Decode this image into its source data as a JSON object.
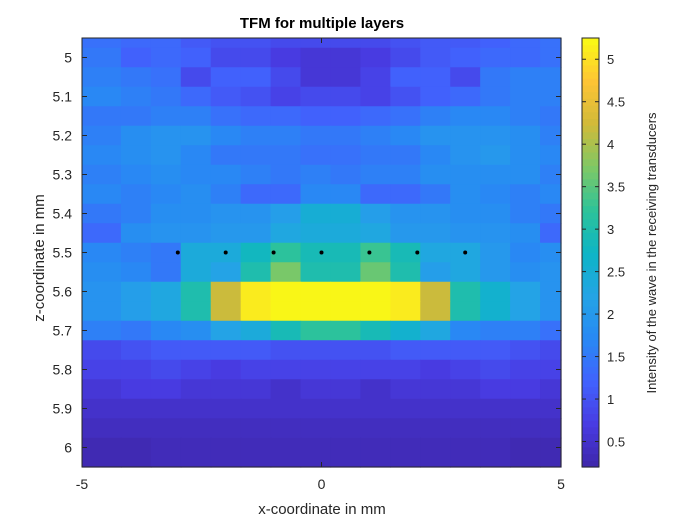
{
  "chart_data": {
    "type": "heatmap",
    "title": "TFM for multiple layers",
    "xlabel": "x-coordinate in mm",
    "ylabel": "z-coordinate in mm",
    "colorbar_label": "Intensity of the wave in the receiving transducers",
    "xlim": [
      -5,
      5
    ],
    "ylim": [
      4.95,
      6.05
    ],
    "y_direction": "reversed",
    "colormap": "parula",
    "clim": [
      0.2,
      5.25
    ],
    "x_ticks": [
      "-5",
      "0",
      "5"
    ],
    "y_ticks": [
      "5",
      "5.1",
      "5.2",
      "5.3",
      "5.4",
      "5.5",
      "5.6",
      "5.7",
      "5.8",
      "5.9",
      "6"
    ],
    "colorbar_ticks": [
      "0.5",
      "1",
      "1.5",
      "2",
      "2.5",
      "3",
      "3.5",
      "4",
      "4.5",
      "5"
    ],
    "x": [
      -4.5,
      -3.875,
      -3.25,
      -2.625,
      -2.0,
      -1.375,
      -0.75,
      -0.125,
      0.5,
      1.125,
      1.75,
      2.375,
      3.0,
      3.625,
      4.25,
      4.875
    ],
    "z": [
      4.95,
      5.0,
      5.05,
      5.1,
      5.15,
      5.2,
      5.25,
      5.3,
      5.35,
      5.4,
      5.45,
      5.5,
      5.55,
      5.6,
      5.65,
      5.7,
      5.75,
      5.8,
      5.85,
      5.9,
      5.95,
      6.0
    ],
    "values": [
      [
        1.4,
        1.3,
        1.3,
        1.1,
        1.0,
        1.0,
        0.9,
        0.9,
        0.9,
        0.9,
        1.0,
        1.1,
        1.1,
        1.2,
        1.3,
        1.4
      ],
      [
        1.5,
        1.2,
        1.3,
        1.2,
        0.9,
        0.9,
        0.7,
        0.6,
        0.6,
        0.7,
        0.9,
        1.1,
        1.2,
        1.3,
        1.3,
        1.4
      ],
      [
        1.6,
        1.5,
        1.4,
        0.9,
        1.2,
        1.2,
        0.9,
        0.6,
        0.6,
        0.8,
        1.2,
        1.2,
        0.9,
        1.5,
        1.6,
        1.6
      ],
      [
        1.7,
        1.6,
        1.5,
        1.3,
        1.1,
        1.0,
        0.8,
        0.9,
        0.9,
        0.8,
        1.0,
        1.2,
        1.3,
        1.5,
        1.6,
        1.6
      ],
      [
        1.5,
        1.5,
        1.6,
        1.6,
        1.4,
        1.3,
        1.3,
        1.2,
        1.2,
        1.3,
        1.4,
        1.6,
        1.7,
        1.7,
        1.6,
        1.5
      ],
      [
        1.6,
        1.8,
        1.9,
        1.9,
        1.7,
        1.6,
        1.6,
        1.5,
        1.5,
        1.6,
        1.7,
        1.9,
        1.9,
        1.9,
        1.8,
        1.6
      ],
      [
        1.7,
        1.8,
        1.9,
        1.7,
        1.5,
        1.5,
        1.5,
        1.4,
        1.4,
        1.5,
        1.5,
        1.7,
        1.9,
        2.0,
        1.8,
        1.7
      ],
      [
        1.6,
        1.7,
        1.8,
        1.7,
        1.7,
        1.6,
        1.5,
        1.6,
        1.5,
        1.6,
        1.6,
        1.8,
        1.8,
        1.8,
        1.8,
        1.6
      ],
      [
        1.7,
        1.6,
        1.7,
        1.8,
        1.6,
        1.3,
        1.3,
        1.7,
        1.7,
        1.3,
        1.3,
        1.5,
        1.8,
        1.7,
        1.6,
        1.7
      ],
      [
        1.5,
        1.6,
        1.8,
        1.8,
        1.9,
        1.9,
        2.1,
        2.5,
        2.5,
        2.1,
        1.9,
        1.9,
        1.8,
        1.8,
        1.6,
        1.5
      ],
      [
        1.3,
        1.8,
        1.9,
        1.9,
        2.0,
        2.0,
        2.3,
        2.4,
        2.4,
        2.3,
        2.0,
        2.0,
        1.9,
        1.9,
        1.8,
        1.3
      ],
      [
        1.7,
        1.6,
        1.5,
        2.4,
        2.4,
        2.8,
        3.2,
        2.9,
        2.9,
        3.3,
        2.9,
        2.3,
        2.3,
        2.0,
        1.7,
        1.8
      ],
      [
        1.8,
        1.7,
        1.5,
        2.4,
        2.2,
        3.0,
        3.7,
        3.0,
        3.0,
        3.6,
        3.0,
        2.1,
        2.3,
        2.0,
        1.8,
        1.9
      ],
      [
        1.9,
        2.1,
        2.3,
        3.0,
        4.2,
        5.1,
        5.2,
        5.2,
        5.2,
        5.2,
        5.1,
        4.2,
        3.0,
        2.6,
        2.2,
        1.9
      ],
      [
        1.9,
        2.1,
        2.3,
        3.0,
        4.2,
        5.1,
        5.2,
        5.2,
        5.2,
        5.2,
        5.1,
        4.2,
        3.0,
        2.6,
        2.2,
        1.9
      ],
      [
        1.6,
        1.5,
        1.7,
        1.8,
        2.2,
        2.4,
        2.9,
        3.2,
        3.2,
        2.9,
        2.6,
        2.3,
        1.7,
        1.6,
        1.6,
        1.4
      ],
      [
        0.9,
        1.0,
        1.1,
        1.1,
        1.1,
        1.1,
        1.0,
        1.0,
        1.0,
        1.0,
        1.1,
        1.1,
        1.1,
        1.1,
        1.0,
        0.9
      ],
      [
        0.8,
        0.8,
        0.9,
        0.8,
        0.7,
        0.8,
        0.8,
        0.8,
        0.8,
        0.8,
        0.8,
        0.7,
        0.8,
        0.9,
        0.8,
        0.8
      ],
      [
        0.6,
        0.7,
        0.7,
        0.6,
        0.6,
        0.6,
        0.5,
        0.6,
        0.6,
        0.5,
        0.6,
        0.6,
        0.6,
        0.7,
        0.7,
        0.6
      ],
      [
        0.5,
        0.5,
        0.5,
        0.5,
        0.5,
        0.5,
        0.5,
        0.5,
        0.5,
        0.5,
        0.5,
        0.5,
        0.5,
        0.5,
        0.5,
        0.5
      ],
      [
        0.4,
        0.4,
        0.4,
        0.4,
        0.4,
        0.4,
        0.4,
        0.4,
        0.4,
        0.4,
        0.4,
        0.4,
        0.4,
        0.4,
        0.4,
        0.4
      ],
      [
        0.3,
        0.3,
        0.35,
        0.35,
        0.35,
        0.35,
        0.35,
        0.35,
        0.35,
        0.35,
        0.35,
        0.35,
        0.35,
        0.35,
        0.3,
        0.3
      ]
    ],
    "points": {
      "x": [
        -3,
        -2,
        -1,
        0,
        1,
        2,
        3
      ],
      "z": [
        5.5,
        5.5,
        5.5,
        5.5,
        5.5,
        5.5,
        5.5
      ],
      "color": "#000000"
    }
  }
}
